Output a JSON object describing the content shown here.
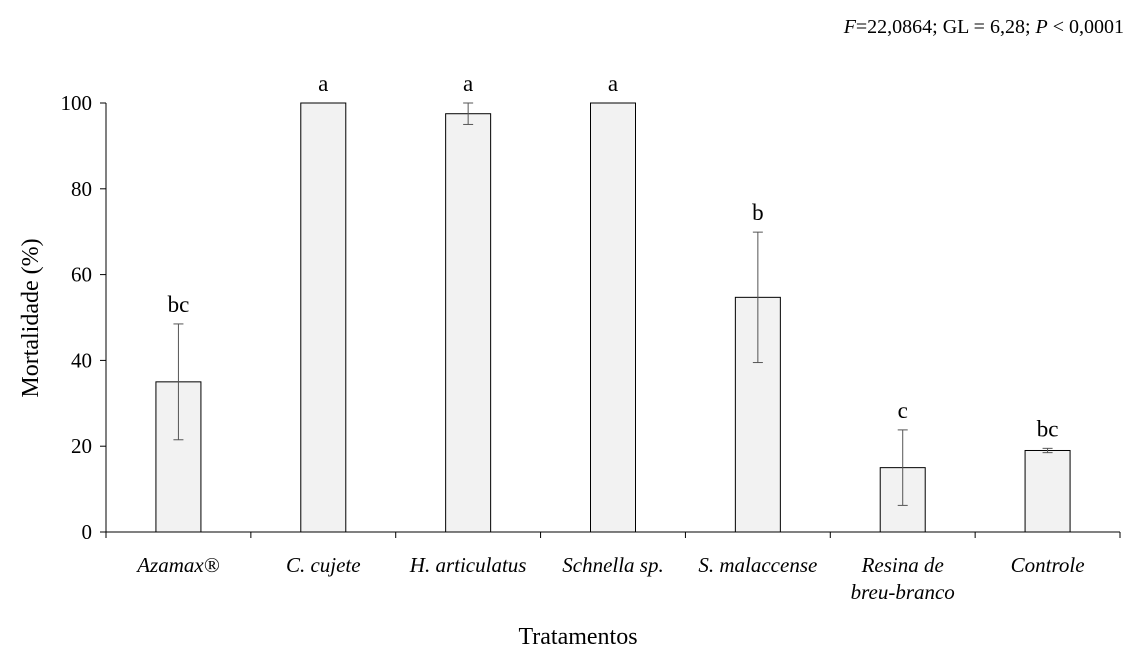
{
  "stats_text": {
    "f_label": "F",
    "f_value": "=22,0864; GL = 6,28; ",
    "p_label": "P",
    "p_value": " < 0,0001"
  },
  "chart_data": {
    "type": "bar",
    "xlabel": "Tratamentos",
    "ylabel": "Mortalidade (%)",
    "ylim": [
      0,
      100
    ],
    "yticks": [
      0,
      20,
      40,
      60,
      80,
      100
    ],
    "grid": false,
    "categories": [
      [
        "Azamax®"
      ],
      [
        "C. cujete"
      ],
      [
        "H. articulatus"
      ],
      [
        "Schnella sp."
      ],
      [
        "S. malaccense"
      ],
      [
        "Resina de",
        "breu-branco"
      ],
      [
        "Controle"
      ]
    ],
    "values": [
      35,
      100,
      97.5,
      100,
      54.7,
      15,
      19
    ],
    "errors": [
      13.5,
      0,
      2.5,
      0,
      15.2,
      8.8,
      0.5
    ],
    "significance_letters": [
      "bc",
      "a",
      "a",
      "a",
      "b",
      "c",
      "bc"
    ],
    "bar_color": "#f2f2f2",
    "bar_stroke": "#000000"
  }
}
